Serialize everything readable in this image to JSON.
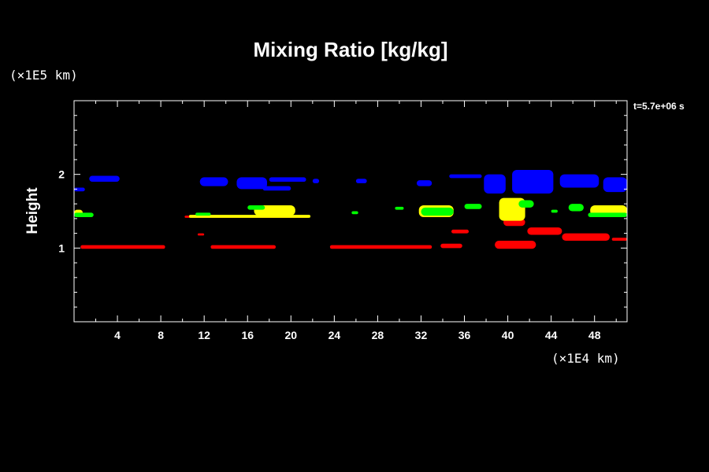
{
  "chart_data": {
    "type": "contour",
    "title": "Mixing Ratio [kg/kg]",
    "xlabel": "",
    "ylabel": "Height",
    "x_unit": "(×1E4 km)",
    "y_unit": "(×1E5 km)",
    "time_label": "t=5.7e+06 s",
    "xlim": [
      0,
      51
    ],
    "ylim": [
      0,
      3
    ],
    "x_ticks": [
      4,
      8,
      12,
      16,
      20,
      24,
      28,
      32,
      36,
      40,
      44,
      48
    ],
    "y_ticks": [
      1,
      2
    ],
    "grid": false,
    "colors": {
      "background": "#000000",
      "foreground": "#ffffff",
      "red": "#ff0000",
      "yellow": "#ffff00",
      "green": "#00ff00",
      "blue": "#0000ff"
    },
    "regions": [
      {
        "color": "red",
        "x": [
          0.6,
          8.4
        ],
        "y": [
          0.99,
          1.04
        ]
      },
      {
        "color": "red",
        "x": [
          12.6,
          18.6
        ],
        "y": [
          0.99,
          1.04
        ]
      },
      {
        "color": "red",
        "x": [
          23.6,
          33.0
        ],
        "y": [
          0.99,
          1.04
        ]
      },
      {
        "color": "red",
        "x": [
          10.2,
          21.6
        ],
        "y": [
          1.41,
          1.44
        ]
      },
      {
        "color": "red",
        "x": [
          11.4,
          12.0
        ],
        "y": [
          1.17,
          1.2
        ]
      },
      {
        "color": "red",
        "x": [
          33.8,
          35.8
        ],
        "y": [
          1.0,
          1.06
        ]
      },
      {
        "color": "red",
        "x": [
          34.8,
          36.4
        ],
        "y": [
          1.2,
          1.25
        ]
      },
      {
        "color": "red",
        "x": [
          38.8,
          42.6
        ],
        "y": [
          0.99,
          1.1
        ]
      },
      {
        "color": "red",
        "x": [
          39.6,
          41.6
        ],
        "y": [
          1.3,
          1.4
        ]
      },
      {
        "color": "red",
        "x": [
          41.8,
          45.0
        ],
        "y": [
          1.18,
          1.28
        ]
      },
      {
        "color": "red",
        "x": [
          45.0,
          49.4
        ],
        "y": [
          1.1,
          1.2
        ]
      },
      {
        "color": "red",
        "x": [
          49.6,
          51.0
        ],
        "y": [
          1.1,
          1.14
        ]
      },
      {
        "color": "yellow",
        "x": [
          10.6,
          21.8
        ],
        "y": [
          1.41,
          1.45
        ]
      },
      {
        "color": "yellow",
        "x": [
          16.6,
          20.4
        ],
        "y": [
          1.44,
          1.58
        ]
      },
      {
        "color": "yellow",
        "x": [
          31.8,
          35.0
        ],
        "y": [
          1.42,
          1.58
        ]
      },
      {
        "color": "yellow",
        "x": [
          39.2,
          41.6
        ],
        "y": [
          1.37,
          1.68
        ]
      },
      {
        "color": "yellow",
        "x": [
          47.6,
          51.0
        ],
        "y": [
          1.44,
          1.58
        ]
      },
      {
        "color": "yellow",
        "x": [
          0.0,
          0.8
        ],
        "y": [
          1.44,
          1.52
        ]
      },
      {
        "color": "green",
        "x": [
          0.0,
          1.8
        ],
        "y": [
          1.42,
          1.48
        ]
      },
      {
        "color": "green",
        "x": [
          11.2,
          12.6
        ],
        "y": [
          1.44,
          1.48
        ]
      },
      {
        "color": "green",
        "x": [
          16.0,
          17.6
        ],
        "y": [
          1.52,
          1.58
        ]
      },
      {
        "color": "green",
        "x": [
          25.6,
          26.2
        ],
        "y": [
          1.46,
          1.5
        ]
      },
      {
        "color": "green",
        "x": [
          29.6,
          30.4
        ],
        "y": [
          1.52,
          1.56
        ]
      },
      {
        "color": "green",
        "x": [
          32.0,
          35.0
        ],
        "y": [
          1.44,
          1.55
        ]
      },
      {
        "color": "green",
        "x": [
          36.0,
          37.6
        ],
        "y": [
          1.53,
          1.6
        ]
      },
      {
        "color": "green",
        "x": [
          41.0,
          42.4
        ],
        "y": [
          1.55,
          1.65
        ]
      },
      {
        "color": "green",
        "x": [
          44.0,
          44.6
        ],
        "y": [
          1.48,
          1.52
        ]
      },
      {
        "color": "green",
        "x": [
          45.6,
          47.0
        ],
        "y": [
          1.5,
          1.6
        ]
      },
      {
        "color": "green",
        "x": [
          47.4,
          51.0
        ],
        "y": [
          1.42,
          1.48
        ]
      },
      {
        "color": "blue",
        "x": [
          0.0,
          1.0
        ],
        "y": [
          1.77,
          1.82
        ]
      },
      {
        "color": "blue",
        "x": [
          1.4,
          4.2
        ],
        "y": [
          1.9,
          1.98
        ]
      },
      {
        "color": "blue",
        "x": [
          11.6,
          14.2
        ],
        "y": [
          1.84,
          1.96
        ]
      },
      {
        "color": "blue",
        "x": [
          15.0,
          17.8
        ],
        "y": [
          1.8,
          1.96
        ]
      },
      {
        "color": "blue",
        "x": [
          18.0,
          21.4
        ],
        "y": [
          1.9,
          1.96
        ]
      },
      {
        "color": "blue",
        "x": [
          17.4,
          20.0
        ],
        "y": [
          1.78,
          1.84
        ]
      },
      {
        "color": "blue",
        "x": [
          22.0,
          22.6
        ],
        "y": [
          1.88,
          1.94
        ]
      },
      {
        "color": "blue",
        "x": [
          26.0,
          27.0
        ],
        "y": [
          1.88,
          1.94
        ]
      },
      {
        "color": "blue",
        "x": [
          31.6,
          33.0
        ],
        "y": [
          1.84,
          1.92
        ]
      },
      {
        "color": "blue",
        "x": [
          34.6,
          37.6
        ],
        "y": [
          1.95,
          2.0
        ]
      },
      {
        "color": "blue",
        "x": [
          37.8,
          39.8
        ],
        "y": [
          1.74,
          2.0
        ]
      },
      {
        "color": "blue",
        "x": [
          40.4,
          44.2
        ],
        "y": [
          1.74,
          2.06
        ]
      },
      {
        "color": "blue",
        "x": [
          44.8,
          48.4
        ],
        "y": [
          1.82,
          2.0
        ]
      },
      {
        "color": "blue",
        "x": [
          48.8,
          51.0
        ],
        "y": [
          1.76,
          1.96
        ]
      }
    ]
  }
}
